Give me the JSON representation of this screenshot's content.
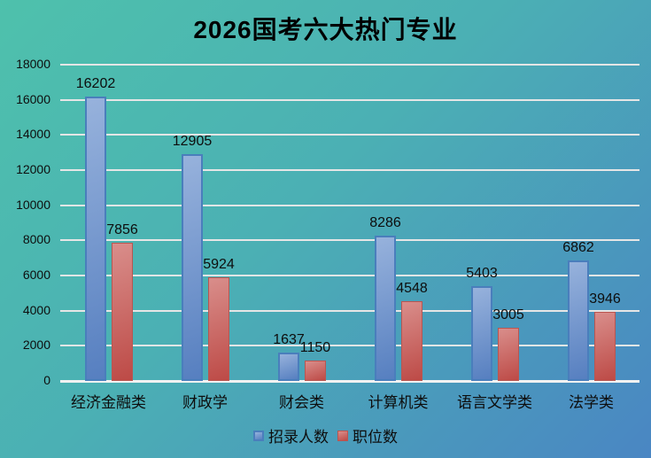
{
  "chart_data": {
    "type": "bar",
    "title": "2026国考六大热门专业",
    "categories": [
      "经济金融类",
      "财政学",
      "财会类",
      "计算机类",
      "语言文学类",
      "法学类"
    ],
    "series": [
      {
        "name": "招录人数",
        "values": [
          16202,
          12905,
          1637,
          8286,
          5403,
          6862
        ],
        "fill_light": "#97b2dc",
        "fill_dark": "#567fc0",
        "border": "#4a7ebc"
      },
      {
        "name": "职位数",
        "values": [
          7856,
          5924,
          1150,
          4548,
          3005,
          3946
        ],
        "fill_light": "#d98e8b",
        "fill_dark": "#bd4a46",
        "border": "#b95550"
      }
    ],
    "ylim": [
      0,
      18000
    ],
    "ytick_step": 2000,
    "ytick_labels": [
      "0",
      "2000",
      "4000",
      "6000",
      "8000",
      "10000",
      "12000",
      "14000",
      "16000",
      "18000"
    ],
    "grid": true,
    "legend_position": "bottom",
    "background_from": "#4ec1ac",
    "background_to": "#4a86c3",
    "gridline_color": "#e6e6e6",
    "label_color": "#0d0d0d"
  }
}
